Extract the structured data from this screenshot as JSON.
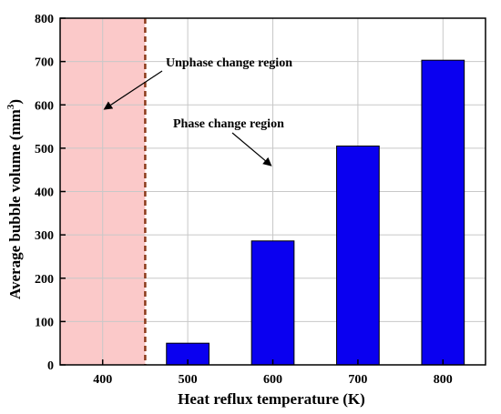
{
  "chart_data": {
    "type": "bar",
    "xlabel": "Heat reflux temperature (K)",
    "ylabel": "Average bubble volume (mm",
    "ylabel_superscript": "3",
    "ylabel_suffix": ")",
    "xlim": [
      350,
      850
    ],
    "ylim": [
      0,
      800
    ],
    "x_ticks": [
      400,
      500,
      600,
      700,
      800
    ],
    "y_ticks": [
      0,
      100,
      200,
      300,
      400,
      500,
      600,
      700,
      800
    ],
    "bar_width": 50,
    "bars": [
      {
        "x": 500,
        "value": 50
      },
      {
        "x": 600,
        "value": 286
      },
      {
        "x": 700,
        "value": 505
      },
      {
        "x": 800,
        "value": 703
      }
    ],
    "bar_color": "#0a00f0",
    "grid": true,
    "shaded_region": {
      "x_start": 350,
      "x_end": 450,
      "color": "#fbc9c9"
    },
    "divider": {
      "x": 450,
      "color": "#8b3a1a",
      "style": "dashed"
    },
    "annotations": [
      {
        "text": "Unphase change region",
        "arrow_to": {
          "x": 402,
          "y": 590
        }
      },
      {
        "text": "Phase change region",
        "arrow_to": {
          "x": 598,
          "y": 460
        }
      }
    ]
  }
}
